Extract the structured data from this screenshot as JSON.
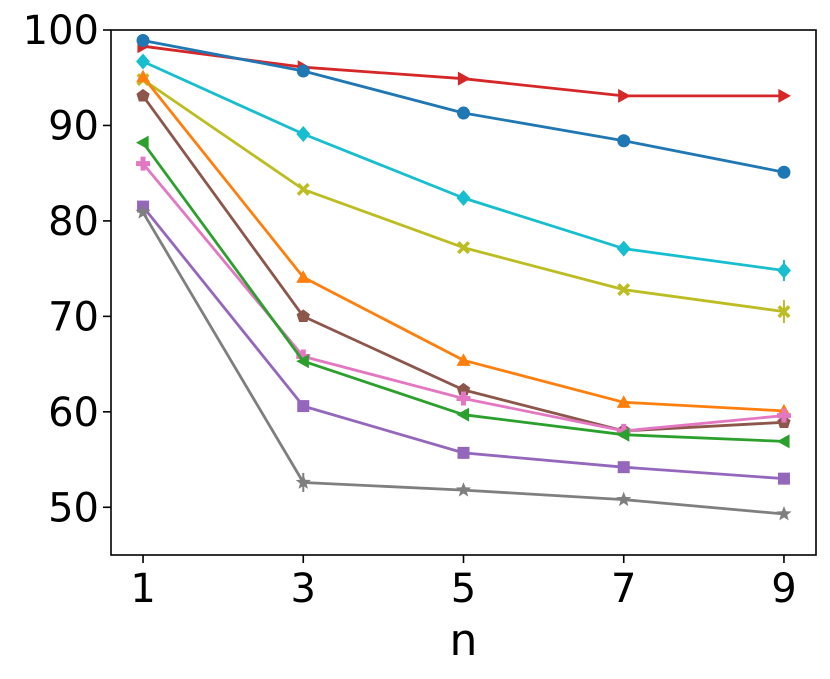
{
  "chart_data": {
    "type": "line",
    "title": "",
    "xlabel": "n",
    "ylabel": "",
    "x": [
      1,
      3,
      5,
      7,
      9
    ],
    "x_ticks": [
      "1",
      "3",
      "5",
      "7",
      "9"
    ],
    "y_ticks": [
      "50",
      "60",
      "70",
      "80",
      "90",
      "100"
    ],
    "xlim": [
      0.6,
      9.4
    ],
    "ylim": [
      45,
      100
    ],
    "grid": false,
    "legend": "none",
    "series": [
      {
        "color": "#d62728",
        "marker": "triangle-right",
        "values": [
          98.3,
          96.1,
          94.9,
          93.1,
          93.1
        ]
      },
      {
        "color": "#1f77b4",
        "marker": "circle",
        "values": [
          98.9,
          95.7,
          91.3,
          88.4,
          85.1
        ]
      },
      {
        "color": "#17becf",
        "marker": "diamond",
        "values": [
          96.7,
          89.1,
          82.4,
          77.1,
          74.8
        ],
        "errors": [
          0,
          0,
          0,
          0,
          1.1
        ]
      },
      {
        "color": "#bcbd22",
        "marker": "x-filled",
        "values": [
          94.8,
          83.3,
          77.2,
          72.8,
          70.5
        ],
        "errors": [
          0,
          0,
          0,
          0,
          1.2
        ]
      },
      {
        "color": "#ff7f0e",
        "marker": "triangle-up",
        "values": [
          95.1,
          74.1,
          65.4,
          61.0,
          60.1
        ]
      },
      {
        "color": "#8c564b",
        "marker": "pentagon",
        "values": [
          93.1,
          70.0,
          62.3,
          58.0,
          58.9
        ]
      },
      {
        "color": "#e377c2",
        "marker": "plus-filled",
        "values": [
          86.0,
          65.8,
          61.4,
          58.0,
          59.6
        ]
      },
      {
        "color": "#2ca02c",
        "marker": "triangle-left",
        "values": [
          88.2,
          65.3,
          59.7,
          57.6,
          56.9
        ]
      },
      {
        "color": "#9467bd",
        "marker": "square",
        "values": [
          81.5,
          60.6,
          55.7,
          54.2,
          53.0
        ]
      },
      {
        "color": "#7f7f7f",
        "marker": "star",
        "values": [
          80.9,
          52.6,
          51.8,
          50.8,
          49.3
        ],
        "errors": [
          0,
          1.0,
          0,
          0,
          0
        ]
      }
    ]
  }
}
